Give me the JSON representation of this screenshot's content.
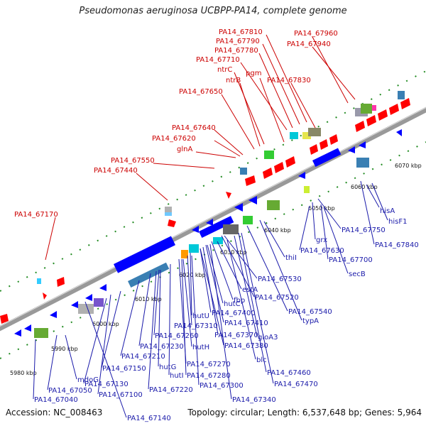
{
  "title": "Pseudomonas aeruginosa UCBPP-PA14, complete genome",
  "footer": {
    "accession": "Accession: NC_008463",
    "topology": "Topology: circular; Length: 6,537,648 bp; Genes: 5,964"
  },
  "colors": {
    "forward_label": "#cc0000",
    "reverse_label": "#1a1aaa",
    "forward_gene": "#ff0000",
    "reverse_gene": "#0000ff",
    "tick_dots": "#228b22",
    "backbone": "#999999"
  },
  "ticks": [
    {
      "label": "5980 kbp",
      "kbp": 5980
    },
    {
      "label": "5990 kbp",
      "kbp": 5990
    },
    {
      "label": "6000 kbp",
      "kbp": 6000
    },
    {
      "label": "6010 kbp",
      "kbp": 6010
    },
    {
      "label": "6020 kbp",
      "kbp": 6020
    },
    {
      "label": "6030 kbp",
      "kbp": 6030
    },
    {
      "label": "6040 kbp",
      "kbp": 6040
    },
    {
      "label": "6050 kbp",
      "kbp": 6050
    },
    {
      "label": "6060 kbp",
      "kbp": 6060
    },
    {
      "label": "6070 kbp",
      "kbp": 6070
    }
  ],
  "forward_labels": [
    "PA14_67810",
    "PA14_67960",
    "PA14_67790",
    "PA14_67940",
    "PA14_67780",
    "PA14_67710",
    "ntrC",
    "pgm",
    "ntrB",
    "PA14_67830",
    "PA14_67650",
    "PA14_67640",
    "PA14_67620",
    "glnA",
    "PA14_67550",
    "PA14_67440",
    "PA14_67170"
  ],
  "reverse_labels": [
    "hisA",
    "hisF1",
    "PA14_67750",
    "PA14_67840",
    "grx",
    "PA14_67630",
    "PA14_67700",
    "thiI",
    "secB",
    "PA14_67530",
    "estA",
    "PA14_67520",
    "fbp",
    "hutC",
    "PA14_67540",
    "PA14_67400",
    "typA",
    "hutU",
    "PA14_67410",
    "PA14_67310",
    "PA14_67370",
    "gloA3",
    "PA14_67260",
    "PA14_67380",
    "PA14_67230",
    "hutH",
    "PA14_67210",
    "blc",
    "PA14_67270",
    "hutG",
    "PA14_67150",
    "hutI",
    "PA14_67280",
    "PA14_67460",
    "PA14_67130",
    "PA14_67220",
    "PA14_67300",
    "PA14_67470",
    "mdoG",
    "PA14_67050",
    "PA14_67100",
    "PA14_67340",
    "PA14_67040",
    "PA14_67140"
  ]
}
